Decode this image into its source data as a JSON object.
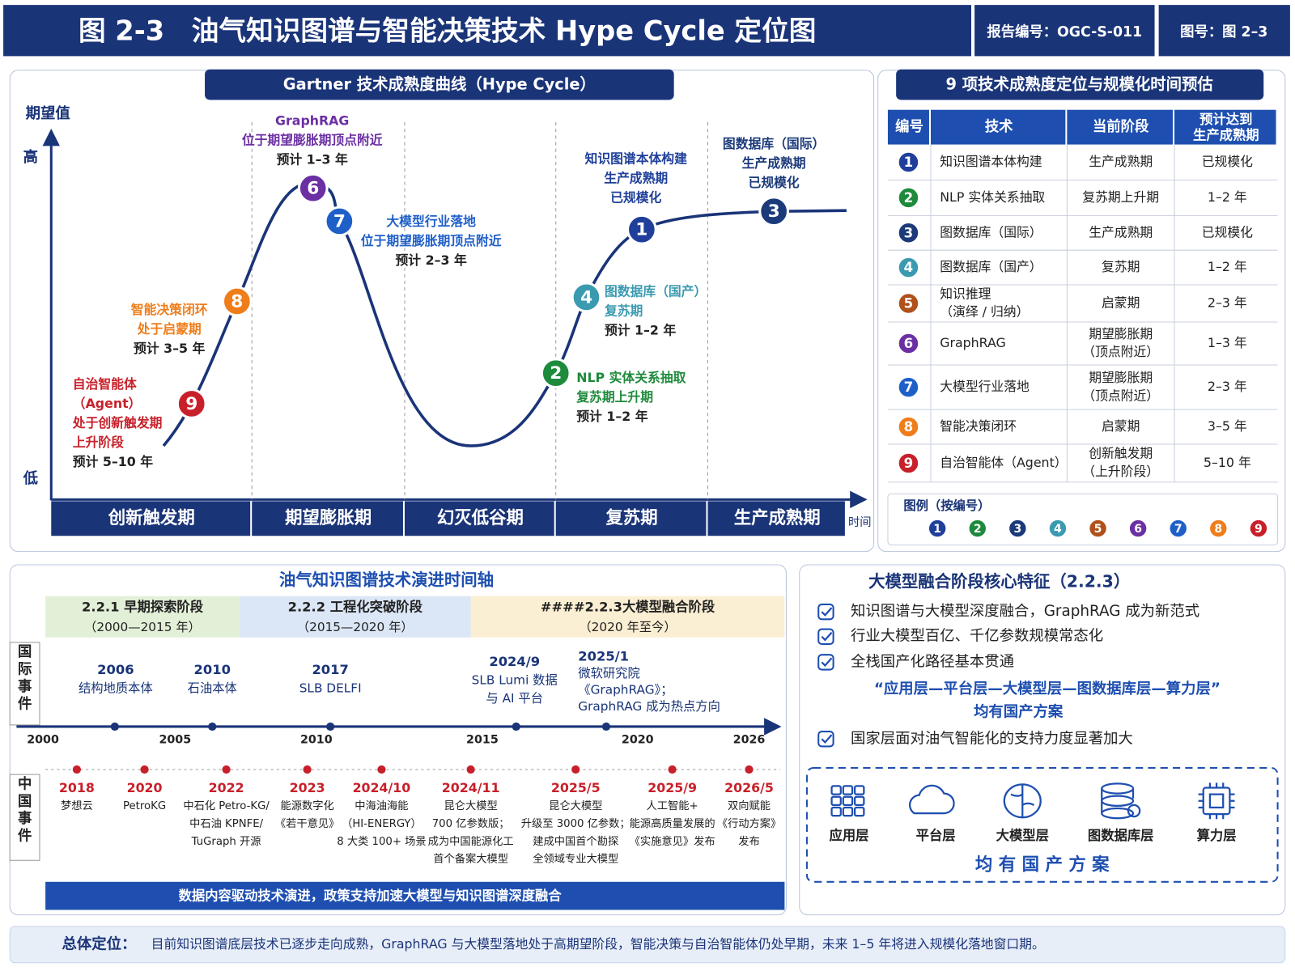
{
  "header": {
    "title": "图 2-3　油气知识图谱与智能决策技术 Hype Cycle 定位图",
    "report_no": "报告编号：OGC-S-011",
    "figure_no": "图号：图 2–3"
  },
  "hype_cycle": {
    "title": "Gartner 技术成熟度曲线（Hype Cycle）",
    "y_label": "期望值",
    "y_high": "高",
    "y_low": "低",
    "x_label": "时间",
    "phases": [
      "创新触发期",
      "期望膨胀期",
      "幻灭低谷期",
      "复苏期",
      "生产成熟期"
    ],
    "points": [
      {
        "no": "9",
        "color": "#c8202a",
        "lines": [
          "自治智能体",
          "（Agent）",
          "处于创新触发期",
          "上升阶段"
        ],
        "note": "预计 5–10 年"
      },
      {
        "no": "8",
        "color": "#ef7d1a",
        "lines": [
          "智能决策闭环",
          "处于启蒙期"
        ],
        "note": "预计 3–5 年"
      },
      {
        "no": "6",
        "color": "#6b2fa3",
        "lines": [
          "GraphRAG",
          "位于期望膨胀期顶点附近"
        ],
        "note": "预计 1–3 年"
      },
      {
        "no": "7",
        "color": "#1f5fc8",
        "lines": [
          "大模型行业落地",
          "位于期望膨胀期顶点附近"
        ],
        "note": "预计 2–3 年"
      },
      {
        "no": "2",
        "color": "#1e8a3c",
        "lines": [
          "NLP 实体关系抽取",
          "复苏期上升期"
        ],
        "note": "预计 1–2 年"
      },
      {
        "no": "4",
        "color": "#3a9ab0",
        "lines": [
          "图数据库（国产）",
          "复苏期"
        ],
        "note": "预计 1–2 年"
      },
      {
        "no": "1",
        "color": "#1f3f9a",
        "lines": [
          "知识图谱本体构建",
          "生产成熟期",
          "已规模化"
        ]
      },
      {
        "no": "3",
        "color": "#1b3a7a",
        "lines": [
          "图数据库（国际）",
          "生产成熟期",
          "已规模化"
        ]
      }
    ]
  },
  "ranking": {
    "title": "9 项技术成熟度定位与规模化时间预估",
    "headers": [
      "编号",
      "技术",
      "当前阶段",
      "预计达到\n生产成熟期"
    ],
    "rows": [
      {
        "no": "1",
        "color": "#1f3f9a",
        "tech": [
          "知识图谱本体构建"
        ],
        "stage": [
          "生产成熟期"
        ],
        "eta": "已规模化"
      },
      {
        "no": "2",
        "color": "#1e8a3c",
        "tech": [
          "NLP 实体关系抽取"
        ],
        "stage": [
          "复苏期上升期"
        ],
        "eta": "1–2 年"
      },
      {
        "no": "3",
        "color": "#1b3a7a",
        "tech": [
          "图数据库（国际）"
        ],
        "stage": [
          "生产成熟期"
        ],
        "eta": "已规模化"
      },
      {
        "no": "4",
        "color": "#3a9ab0",
        "tech": [
          "图数据库（国产）"
        ],
        "stage": [
          "复苏期"
        ],
        "eta": "1–2 年"
      },
      {
        "no": "5",
        "color": "#b0501a",
        "tech": [
          "知识推理",
          "（演绎 / 归纳）"
        ],
        "stage": [
          "启蒙期"
        ],
        "eta": "2–3 年"
      },
      {
        "no": "6",
        "color": "#6b2fa3",
        "tech": [
          "GraphRAG"
        ],
        "stage": [
          "期望膨胀期",
          "（顶点附近）"
        ],
        "eta": "1–3 年"
      },
      {
        "no": "7",
        "color": "#1f5fc8",
        "tech": [
          "大模型行业落地"
        ],
        "stage": [
          "期望膨胀期",
          "（顶点附近）"
        ],
        "eta": "2–3 年"
      },
      {
        "no": "8",
        "color": "#ef7d1a",
        "tech": [
          "智能决策闭环"
        ],
        "stage": [
          "启蒙期"
        ],
        "eta": "3–5 年"
      },
      {
        "no": "9",
        "color": "#c8202a",
        "tech": [
          "自治智能体（Agent）"
        ],
        "stage": [
          "创新触发期",
          "（上升阶段）"
        ],
        "eta": "5–10 年"
      }
    ],
    "legend_title": "图例（按编号）"
  },
  "timeline": {
    "title": "油气知识图谱技术演进时间轴",
    "stages": [
      {
        "title": "2.2.1 早期探索阶段",
        "period": "（2000—2015 年）"
      },
      {
        "title": "2.2.2 工程化突破阶段",
        "period": "（2015—2020 年）"
      },
      {
        "title": "####2.2.3大模型融合阶段",
        "period": "（2020 年至今）"
      }
    ],
    "intl_label": "国际事件",
    "cn_label": "中国事件",
    "axis_years": [
      "2000",
      "2005",
      "2010",
      "2015",
      "2020",
      "2026"
    ],
    "intl_events": [
      {
        "lines": [
          "2006",
          "结构地质本体"
        ]
      },
      {
        "lines": [
          "2010",
          "石油本体"
        ]
      },
      {
        "lines": [
          "2017",
          "SLB DELFI"
        ]
      },
      {
        "lines": [
          "2024/9",
          "SLB Lumi 数据",
          "与 AI 平台"
        ]
      },
      {
        "lines": [
          "2025/1",
          "微软研究院",
          "《GraphRAG》；",
          "GraphRAG 成为热点方向"
        ]
      }
    ],
    "cn_events": [
      {
        "year": "2018",
        "lines": [
          "梦想云"
        ]
      },
      {
        "year": "2020",
        "lines": [
          "PetroKG"
        ]
      },
      {
        "year": "2022",
        "lines": [
          "中石化 Petro-KG/",
          "中石油 KPNFE/",
          "TuGraph 开源"
        ]
      },
      {
        "year": "2023",
        "lines": [
          "能源数字化",
          "《若干意见》"
        ]
      },
      {
        "year": "2024/10",
        "lines": [
          "中海油海能",
          "（HI-ENERGY）",
          "8 大类 100+ 场景"
        ]
      },
      {
        "year": "2024/11",
        "lines": [
          "昆仑大模型",
          "700 亿参数版；",
          "成为中国能源化工",
          "首个备案大模型"
        ]
      },
      {
        "year": "2025/5",
        "lines": [
          "昆仑大模型",
          "升级至 3000 亿参数；",
          "建成中国首个勘探",
          "全领域专业大模型"
        ]
      },
      {
        "year": "2025/9",
        "lines": [
          "人工智能+",
          "能源高质量发展的",
          "《实施意见》发布"
        ]
      },
      {
        "year": "2026/5",
        "lines": [
          "双向赋能",
          "《行动方案》",
          "发布"
        ]
      }
    ],
    "footer": "数据内容驱动技术演进，政策支持加速大模型与知识图谱深度融合"
  },
  "features": {
    "title": "大模型融合阶段核心特征（2.2.3）",
    "items": [
      "知识图谱与大模型深度融合，GraphRAG 成为新范式",
      "行业大模型百亿、千亿参数规模常态化",
      "全栈国产化路径基本贯通"
    ],
    "quote": [
      "“应用层—平台层—大模型层—图数据库层—算力层”",
      "均有国产方案"
    ],
    "last_item": "国家层面对油气智能化的支持力度显著加大",
    "layers": [
      "应用层",
      "平台层",
      "大模型层",
      "图数据库层",
      "算力层"
    ],
    "layers_caption": "均 有 国 产 方 案"
  },
  "summary": {
    "label": "总体定位：",
    "text": "目前知识图谱底层技术已逐步走向成熟，GraphRAG 与大模型落地处于高期望阶段，智能决策与自治智能体仍处早期，未来 1–5 年将进入规模化落地窗口期。"
  }
}
